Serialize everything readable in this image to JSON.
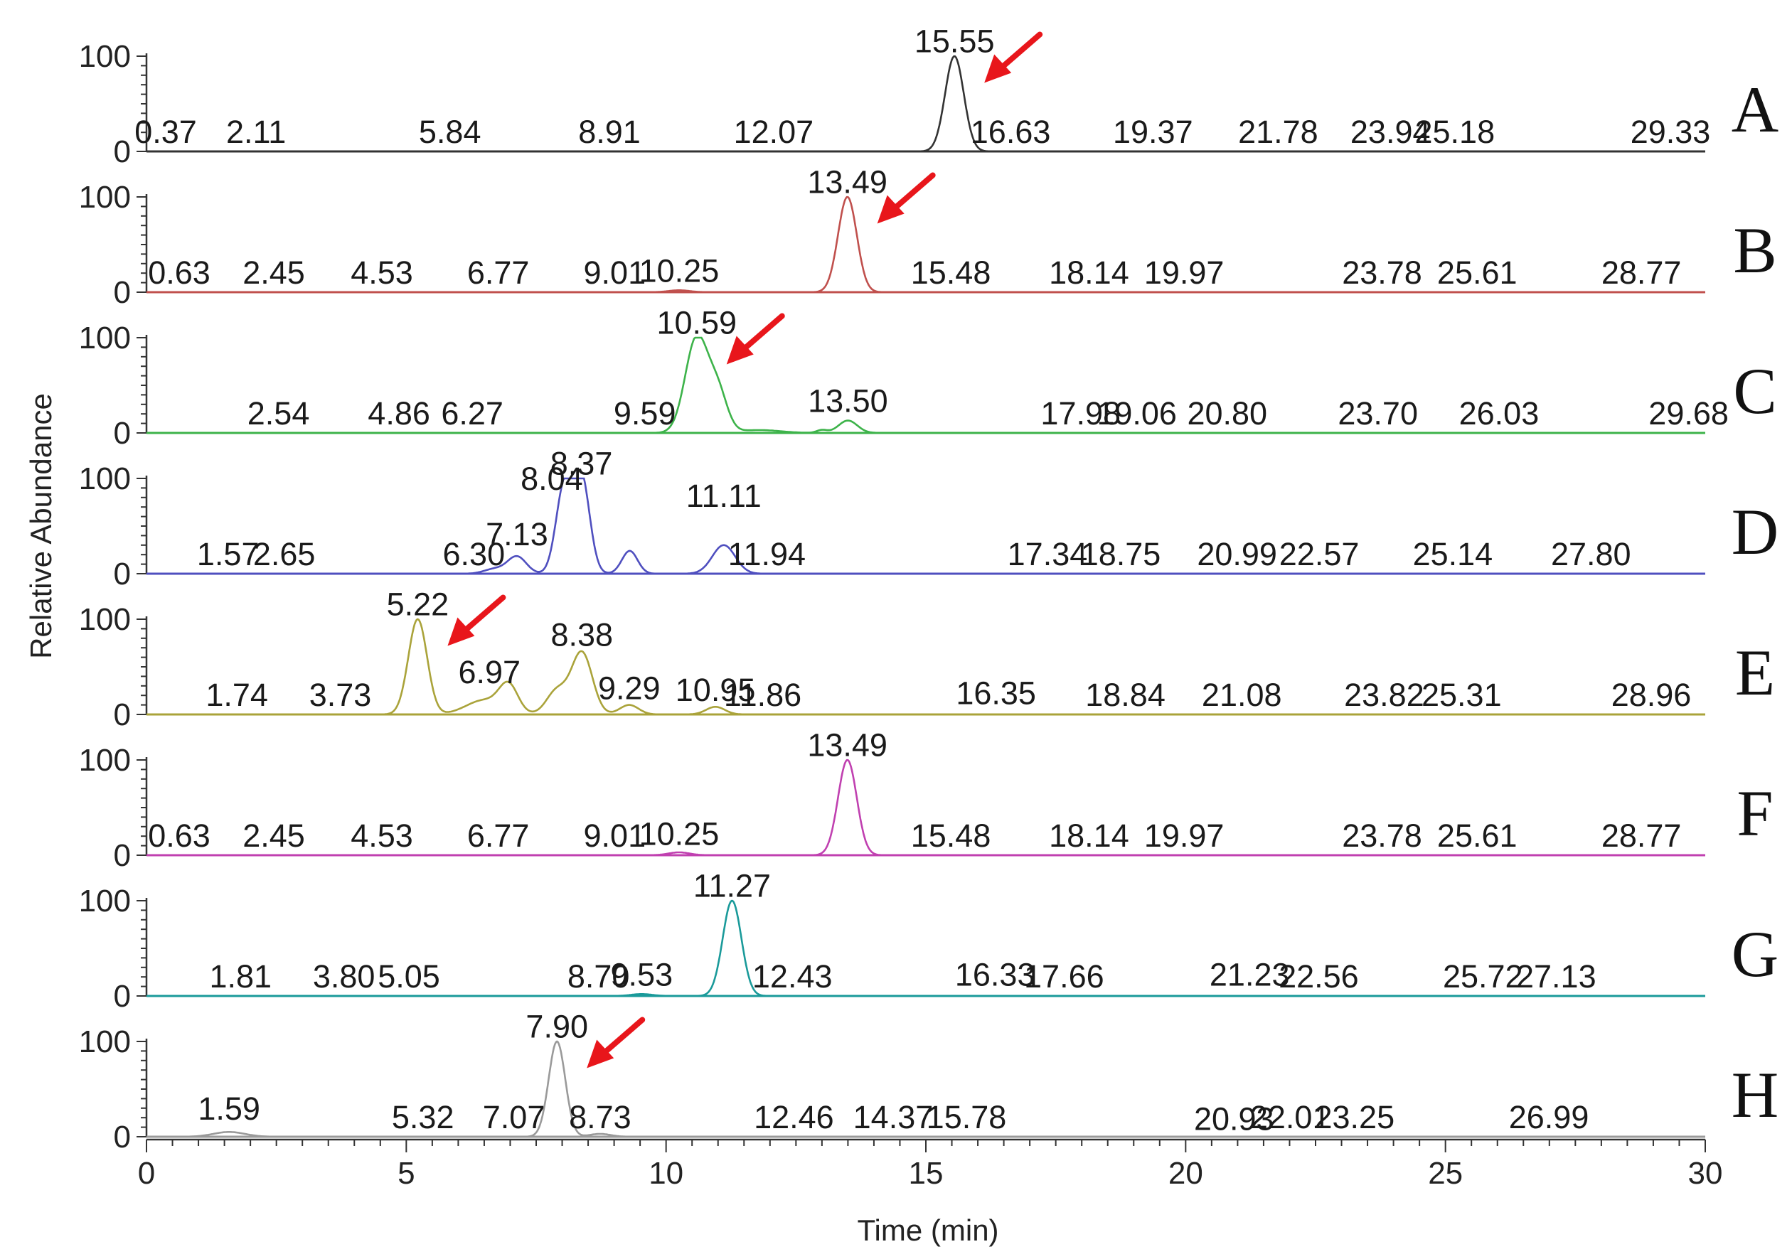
{
  "chart_data": {
    "type": "line",
    "xlabel": "Time (min)",
    "ylabel": "Relative Abundance",
    "xlim": [
      0,
      30
    ],
    "ylim": [
      0,
      100
    ],
    "x_ticks": [
      "0",
      "5",
      "10",
      "15",
      "20",
      "25",
      "30"
    ],
    "y_ticks": [
      "0",
      "100"
    ],
    "grid": false,
    "annotation_arrow_color": "#e8161b",
    "panels": [
      {
        "label": "A",
        "color": "#333333",
        "arrow": 1,
        "peaks": [
          [
            15.55,
            100,
            0.18
          ]
        ],
        "labels": [
          {
            "t": "0.37",
            "x": 0.37,
            "y": 9
          },
          {
            "t": "2.11",
            "x": 2.11,
            "y": 9
          },
          {
            "t": "5.84",
            "x": 5.84,
            "y": 9
          },
          {
            "t": "8.91",
            "x": 8.91,
            "y": 9
          },
          {
            "t": "12.07",
            "x": 12.07,
            "y": 9
          },
          {
            "t": "15.55",
            "x": 15.55,
            "y": 104
          },
          {
            "t": "16.63",
            "x": 16.63,
            "y": 9
          },
          {
            "t": "19.37",
            "x": 19.37,
            "y": 9
          },
          {
            "t": "21.78",
            "x": 21.78,
            "y": 9
          },
          {
            "t": "23.94",
            "x": 23.94,
            "y": 9
          },
          {
            "t": "25.18",
            "x": 25.18,
            "y": 9
          },
          {
            "t": "29.33",
            "x": 29.33,
            "y": 9
          }
        ]
      },
      {
        "label": "B",
        "color": "#c0504d",
        "arrow": 1,
        "peaks": [
          [
            13.49,
            100,
            0.18
          ],
          [
            10.25,
            2,
            0.2
          ]
        ],
        "labels": [
          {
            "t": "0.63",
            "x": 0.63,
            "y": 9
          },
          {
            "t": "2.45",
            "x": 2.45,
            "y": 9
          },
          {
            "t": "4.53",
            "x": 4.53,
            "y": 9
          },
          {
            "t": "6.77",
            "x": 6.77,
            "y": 9
          },
          {
            "t": "9.01",
            "x": 9.01,
            "y": 9
          },
          {
            "t": "10.25",
            "x": 10.25,
            "y": 11
          },
          {
            "t": "13.49",
            "x": 13.49,
            "y": 104
          },
          {
            "t": "15.48",
            "x": 15.48,
            "y": 9
          },
          {
            "t": "18.14",
            "x": 18.14,
            "y": 9
          },
          {
            "t": "19.97",
            "x": 19.97,
            "y": 9
          },
          {
            "t": "23.78",
            "x": 23.78,
            "y": 9
          },
          {
            "t": "25.61",
            "x": 25.61,
            "y": 9
          },
          {
            "t": "28.77",
            "x": 28.77,
            "y": 9
          }
        ]
      },
      {
        "label": "C",
        "color": "#3db34a",
        "arrow": 1,
        "peaks": [
          [
            10.59,
            100,
            0.22
          ],
          [
            11.0,
            40,
            0.18
          ],
          [
            11.8,
            3,
            0.4
          ],
          [
            13.5,
            13,
            0.18
          ],
          [
            13.0,
            3,
            0.1
          ]
        ],
        "labels": [
          {
            "t": "2.54",
            "x": 2.54,
            "y": 9
          },
          {
            "t": "4.86",
            "x": 4.86,
            "y": 9
          },
          {
            "t": "6.27",
            "x": 6.27,
            "y": 9
          },
          {
            "t": "9.59",
            "x": 9.59,
            "y": 9
          },
          {
            "t": "10.59",
            "x": 10.59,
            "y": 104
          },
          {
            "t": "13.50",
            "x": 13.5,
            "y": 22
          },
          {
            "t": "17.98",
            "x": 17.98,
            "y": 9
          },
          {
            "t": "19.06",
            "x": 19.06,
            "y": 9
          },
          {
            "t": "20.80",
            "x": 20.8,
            "y": 9
          },
          {
            "t": "23.70",
            "x": 23.7,
            "y": 9
          },
          {
            "t": "26.03",
            "x": 26.03,
            "y": 9
          },
          {
            "t": "29.68",
            "x": 29.68,
            "y": 9
          }
        ]
      },
      {
        "label": "D",
        "color": "#4f4fbf",
        "arrow": 0,
        "peaks": [
          [
            8.04,
            90,
            0.16
          ],
          [
            8.37,
            100,
            0.16
          ],
          [
            7.13,
            18,
            0.18
          ],
          [
            9.3,
            24,
            0.15
          ],
          [
            11.11,
            30,
            0.22
          ],
          [
            6.7,
            5,
            0.2
          ]
        ],
        "labels": [
          {
            "t": "1.57",
            "x": 1.57,
            "y": 9
          },
          {
            "t": "2.65",
            "x": 2.65,
            "y": 9
          },
          {
            "t": "6.30",
            "x": 6.3,
            "y": 9
          },
          {
            "t": "7.13",
            "x": 7.13,
            "y": 30
          },
          {
            "t": "8.04",
            "x": 7.8,
            "y": 88
          },
          {
            "t": "8.37",
            "x": 8.37,
            "y": 104
          },
          {
            "t": "11.11",
            "x": 11.11,
            "y": 70
          },
          {
            "t": "11.94",
            "x": 11.94,
            "y": 9
          },
          {
            "t": "17.34",
            "x": 17.34,
            "y": 9
          },
          {
            "t": "18.75",
            "x": 18.75,
            "y": 9
          },
          {
            "t": "20.99",
            "x": 20.99,
            "y": 9
          },
          {
            "t": "22.57",
            "x": 22.57,
            "y": 9
          },
          {
            "t": "25.14",
            "x": 25.14,
            "y": 9
          },
          {
            "t": "27.80",
            "x": 27.8,
            "y": 9
          }
        ]
      },
      {
        "label": "E",
        "color": "#aaa33a",
        "arrow": 1,
        "peaks": [
          [
            5.22,
            100,
            0.18
          ],
          [
            6.97,
            28,
            0.18
          ],
          [
            6.5,
            15,
            0.35
          ],
          [
            8.38,
            65,
            0.2
          ],
          [
            7.9,
            25,
            0.2
          ],
          [
            9.29,
            10,
            0.18
          ],
          [
            10.95,
            8,
            0.18
          ]
        ],
        "labels": [
          {
            "t": "1.74",
            "x": 1.74,
            "y": 9
          },
          {
            "t": "3.73",
            "x": 3.73,
            "y": 9
          },
          {
            "t": "5.22",
            "x": 5.22,
            "y": 104
          },
          {
            "t": "6.97",
            "x": 6.6,
            "y": 33
          },
          {
            "t": "8.38",
            "x": 8.38,
            "y": 72
          },
          {
            "t": "9.29",
            "x": 9.29,
            "y": 16
          },
          {
            "t": "10.95",
            "x": 10.95,
            "y": 14
          },
          {
            "t": "11.86",
            "x": 11.86,
            "y": 9
          },
          {
            "t": "16.35",
            "x": 16.35,
            "y": 11
          },
          {
            "t": "18.84",
            "x": 18.84,
            "y": 9
          },
          {
            "t": "21.08",
            "x": 21.08,
            "y": 9
          },
          {
            "t": "23.82",
            "x": 23.82,
            "y": 9
          },
          {
            "t": "25.31",
            "x": 25.31,
            "y": 9
          },
          {
            "t": "28.96",
            "x": 28.96,
            "y": 9
          }
        ]
      },
      {
        "label": "F",
        "color": "#c040b0",
        "arrow": 0,
        "peaks": [
          [
            13.49,
            100,
            0.18
          ],
          [
            10.25,
            3,
            0.2
          ]
        ],
        "labels": [
          {
            "t": "0.63",
            "x": 0.63,
            "y": 9
          },
          {
            "t": "2.45",
            "x": 2.45,
            "y": 9
          },
          {
            "t": "4.53",
            "x": 4.53,
            "y": 9
          },
          {
            "t": "6.77",
            "x": 6.77,
            "y": 9
          },
          {
            "t": "9.01",
            "x": 9.01,
            "y": 9
          },
          {
            "t": "10.25",
            "x": 10.25,
            "y": 11
          },
          {
            "t": "13.49",
            "x": 13.49,
            "y": 104
          },
          {
            "t": "15.48",
            "x": 15.48,
            "y": 9
          },
          {
            "t": "18.14",
            "x": 18.14,
            "y": 9
          },
          {
            "t": "19.97",
            "x": 19.97,
            "y": 9
          },
          {
            "t": "23.78",
            "x": 23.78,
            "y": 9
          },
          {
            "t": "25.61",
            "x": 25.61,
            "y": 9
          },
          {
            "t": "28.77",
            "x": 28.77,
            "y": 9
          }
        ]
      },
      {
        "label": "G",
        "color": "#1a9a9a",
        "arrow": 0,
        "peaks": [
          [
            11.27,
            100,
            0.18
          ],
          [
            9.53,
            2,
            0.2
          ]
        ],
        "labels": [
          {
            "t": "1.81",
            "x": 1.81,
            "y": 9
          },
          {
            "t": "3.80",
            "x": 3.8,
            "y": 9
          },
          {
            "t": "5.05",
            "x": 5.05,
            "y": 9
          },
          {
            "t": "8.70",
            "x": 8.7,
            "y": 9
          },
          {
            "t": "9.53",
            "x": 9.53,
            "y": 11
          },
          {
            "t": "11.27",
            "x": 11.27,
            "y": 104
          },
          {
            "t": "12.43",
            "x": 12.43,
            "y": 9
          },
          {
            "t": "16.33",
            "x": 16.33,
            "y": 11
          },
          {
            "t": "17.66",
            "x": 17.66,
            "y": 9
          },
          {
            "t": "21.23",
            "x": 21.23,
            "y": 11
          },
          {
            "t": "22.56",
            "x": 22.56,
            "y": 9
          },
          {
            "t": "25.72",
            "x": 25.72,
            "y": 9
          },
          {
            "t": "27.13",
            "x": 27.13,
            "y": 9
          }
        ]
      },
      {
        "label": "H",
        "color": "#9a9a9a",
        "arrow": 1,
        "peaks": [
          [
            7.9,
            100,
            0.16
          ],
          [
            1.59,
            5,
            0.3
          ],
          [
            8.73,
            3,
            0.2
          ]
        ],
        "labels": [
          {
            "t": "1.59",
            "x": 1.59,
            "y": 18
          },
          {
            "t": "5.32",
            "x": 5.32,
            "y": 9
          },
          {
            "t": "7.07",
            "x": 7.07,
            "y": 9
          },
          {
            "t": "7.90",
            "x": 7.9,
            "y": 104
          },
          {
            "t": "8.73",
            "x": 8.73,
            "y": 9
          },
          {
            "t": "12.46",
            "x": 12.46,
            "y": 9
          },
          {
            "t": "14.37",
            "x": 14.37,
            "y": 9
          },
          {
            "t": "15.78",
            "x": 15.78,
            "y": 9
          },
          {
            "t": "20.93",
            "x": 20.93,
            "y": 7
          },
          {
            "t": "22.01",
            "x": 22.01,
            "y": 9
          },
          {
            "t": "23.25",
            "x": 23.25,
            "y": 9
          },
          {
            "t": "26.99",
            "x": 26.99,
            "y": 9
          }
        ]
      }
    ]
  }
}
